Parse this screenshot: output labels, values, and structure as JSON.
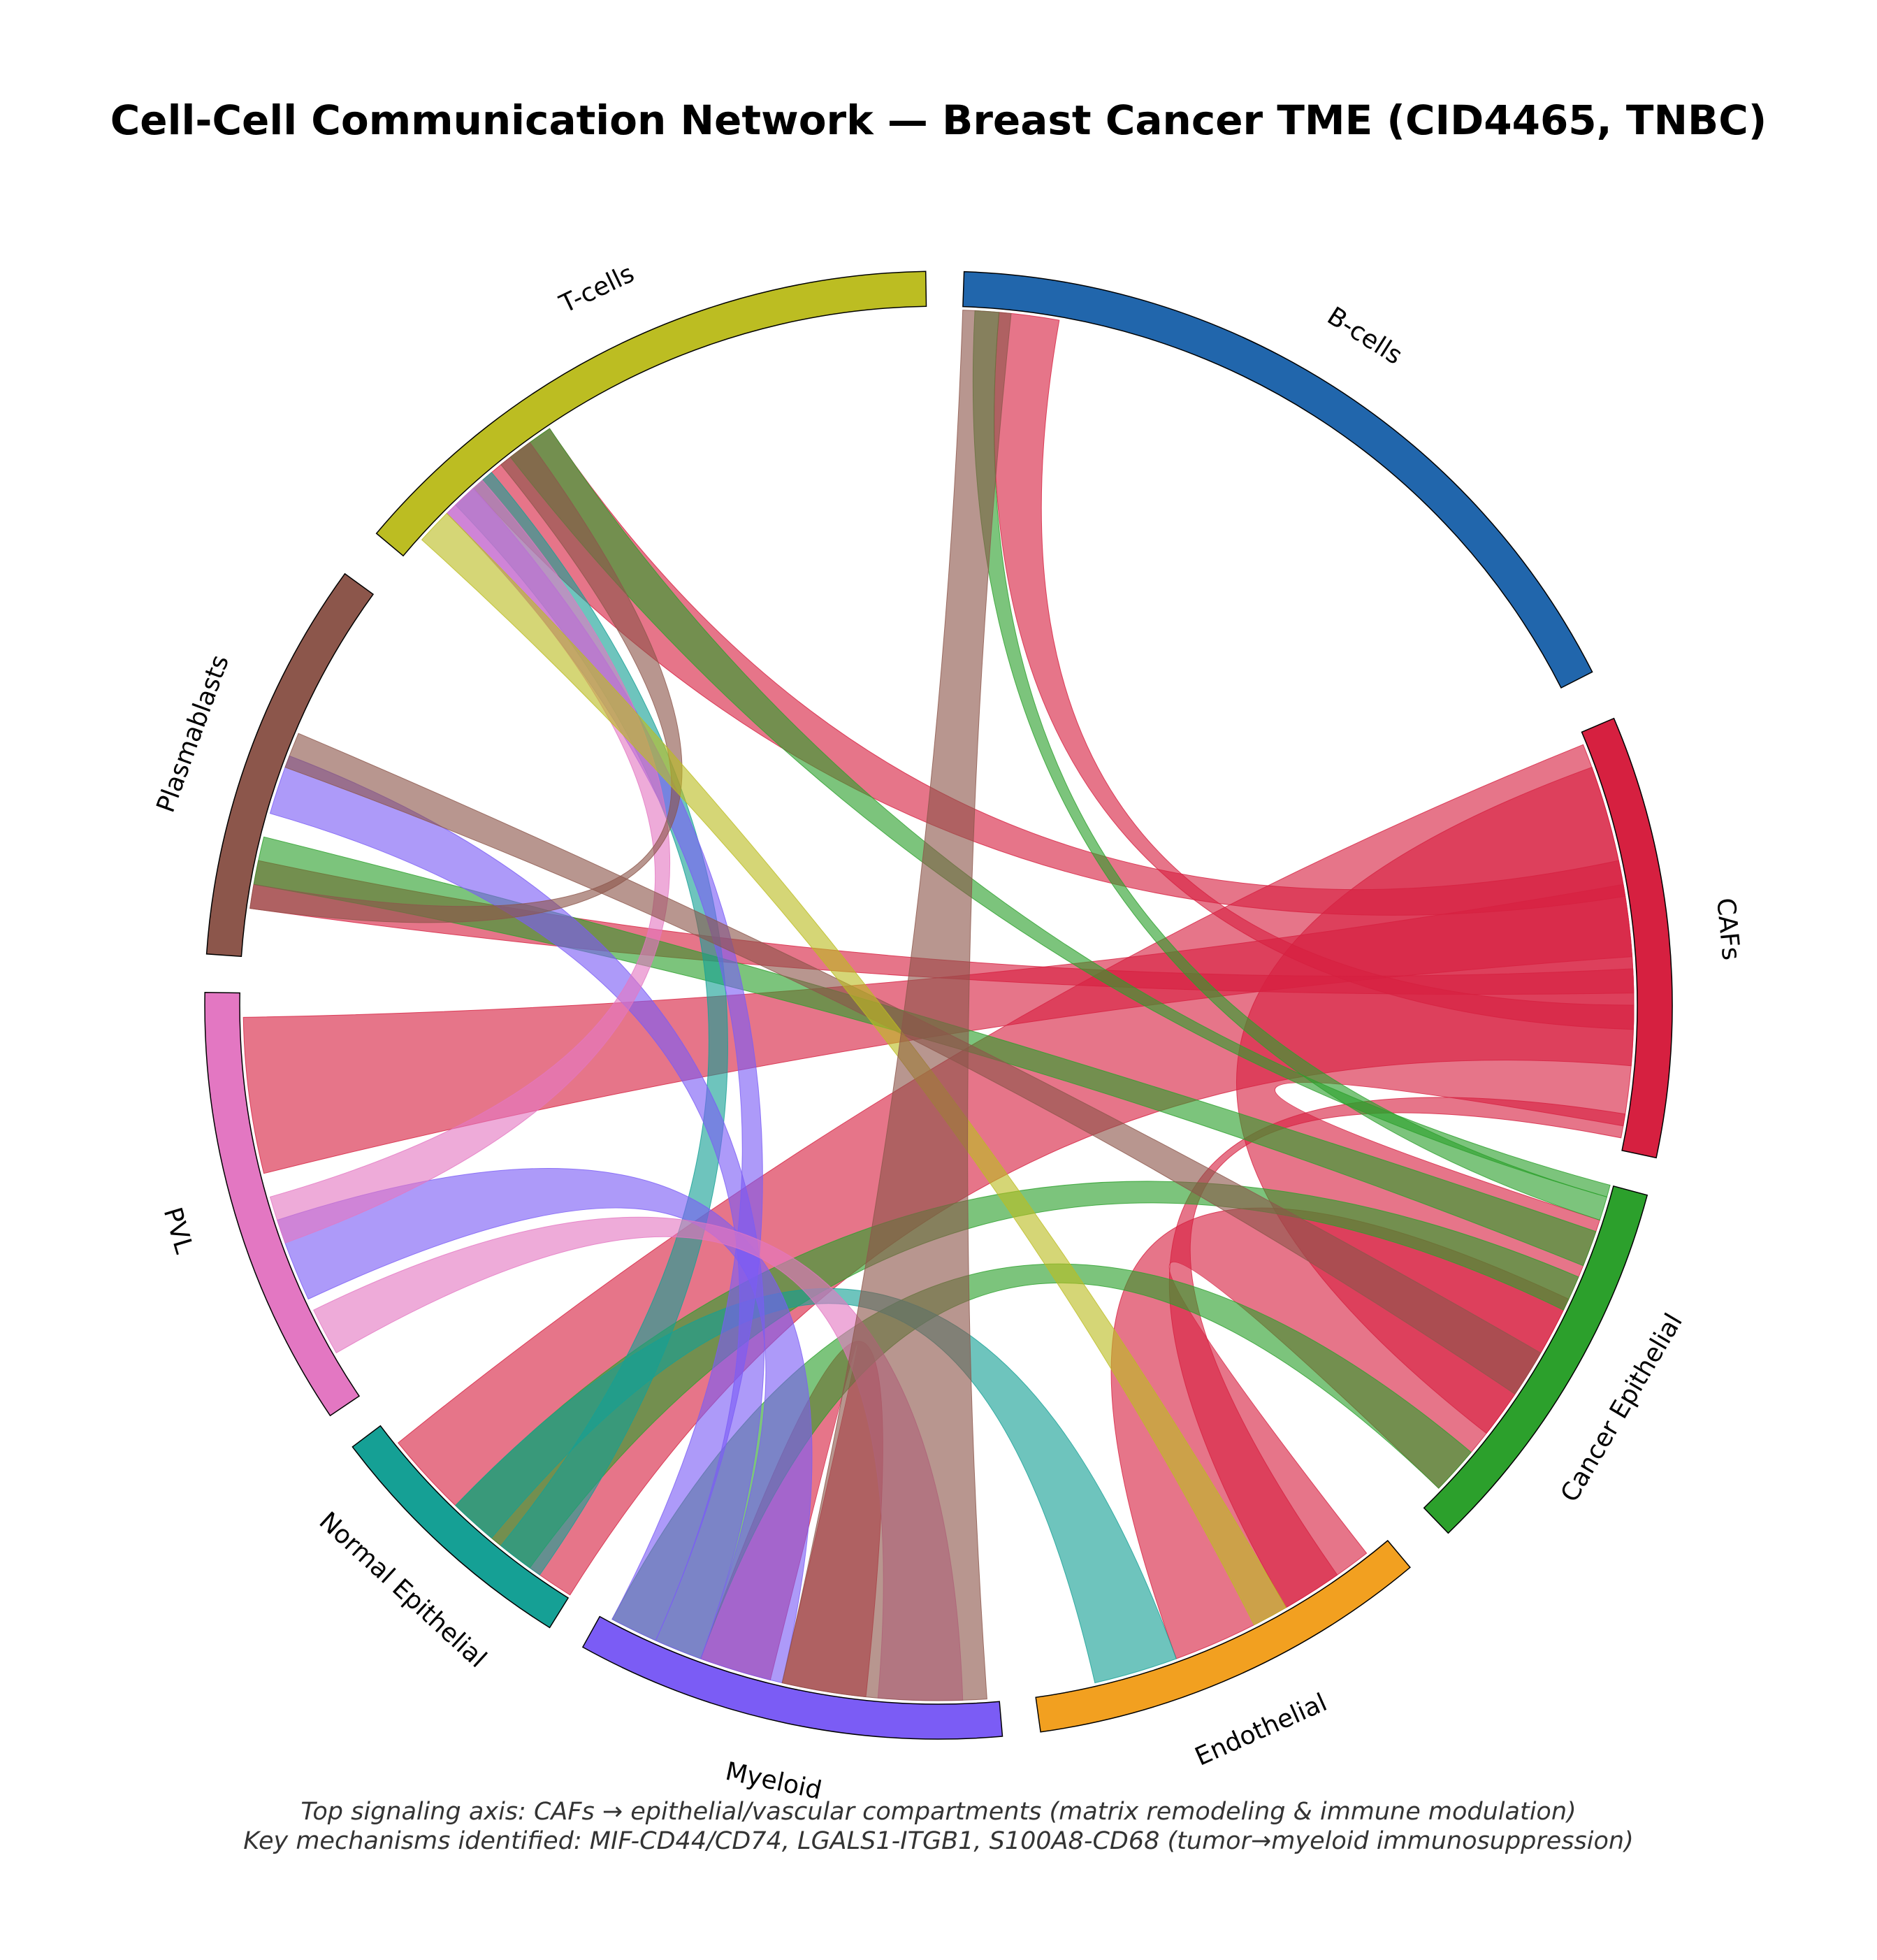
{
  "title": "Cell-Cell Communication Network — Breast Cancer TME (CID4465, TNBC)",
  "caption": {
    "line1": "Top signaling axis: CAFs → epithelial/vascular compartments (matrix remodeling & immune modulation)",
    "line2": "Key mechanisms identified: MIF-CD44/CD74, LGALS1-ITGB1, S100A8-CD68 (tumor→myeloid immunosuppression)"
  },
  "chart_data": {
    "type": "chord",
    "segments": [
      {
        "id": "bcells",
        "label": "B-cells",
        "color": "#2166ac",
        "start": -88,
        "end": -27
      },
      {
        "id": "cafs",
        "label": "CAFs",
        "color": "#d62040",
        "start": -23,
        "end": 12
      },
      {
        "id": "cancer_epi",
        "label": "Cancer Epithelial",
        "color": "#2ca02c",
        "start": 15,
        "end": 46
      },
      {
        "id": "endothelial",
        "label": "Endothelial",
        "color": "#f2a020",
        "start": 50,
        "end": 82
      },
      {
        "id": "myeloid",
        "label": "Myeloid",
        "color": "#7b5cf5",
        "start": 85,
        "end": 119
      },
      {
        "id": "normal_epi",
        "label": "Normal Epithelial",
        "color": "#15a095",
        "start": 122,
        "end": 143
      },
      {
        "id": "pvl",
        "label": "PVL",
        "color": "#e377c2",
        "start": 146,
        "end": 181
      },
      {
        "id": "plasmablasts",
        "label": "Plasmablasts",
        "color": "#8c564b",
        "start": 184,
        "end": 216
      },
      {
        "id": "tcells",
        "label": "T-cells",
        "color": "#bcbd22",
        "start": 220,
        "end": 269
      }
    ],
    "links": [
      {
        "source": "cafs",
        "s": [
          -22,
          5
        ],
        "t": [
          122,
          141
        ],
        "color": "#d62040"
      },
      {
        "source": "cafs",
        "s": [
          -20,
          10
        ],
        "t": [
          18,
          38
        ],
        "color": "#d62040"
      },
      {
        "source": "cafs",
        "s": [
          9,
          11
        ],
        "t": [
          55,
          60
        ],
        "color": "#d62040"
      },
      {
        "source": "cafs",
        "s": [
          -10,
          -4
        ],
        "t": [
          166,
          179
        ],
        "color": "#d62040"
      },
      {
        "source": "cafs",
        "s": [
          -3,
          -1
        ],
        "t": [
          188,
          192
        ],
        "color": "#d62040"
      },
      {
        "source": "cafs",
        "s": [
          -12,
          -9
        ],
        "t": [
          228,
          236
        ],
        "color": "#d62040"
      },
      {
        "source": "cafs",
        "s": [
          0,
          2
        ],
        "t": [
          -85,
          -80
        ],
        "color": "#d62040"
      },
      {
        "source": "cancer_epi",
        "s": [
          25,
          44
        ],
        "t": [
          52,
          70
        ],
        "color": "#d62040"
      },
      {
        "source": "myeloid",
        "s": [
          104,
          110
        ],
        "t": [
          96,
          103
        ],
        "color": "#d62040"
      },
      {
        "source": "cancer_epi",
        "s": [
          19,
          22
        ],
        "t": [
          190,
          194
        ],
        "color": "#2ca02c"
      },
      {
        "source": "cancer_epi",
        "s": [
          16,
          18
        ],
        "t": [
          -87,
          -85
        ],
        "color": "#2ca02c"
      },
      {
        "source": "cancer_epi",
        "s": [
          15,
          16
        ],
        "t": [
          232,
          236
        ],
        "color": "#2ca02c"
      },
      {
        "source": "cancer_epi",
        "s": [
          23,
          26
        ],
        "t": [
          126,
          134
        ],
        "color": "#2ca02c"
      },
      {
        "source": "cancer_epi",
        "s": [
          40,
          44
        ],
        "t": [
          110,
          118
        ],
        "color": "#2ca02c"
      },
      {
        "source": "normal_epi",
        "s": [
          125,
          129
        ],
        "t": [
          226,
          230
        ],
        "color": "#15a095"
      },
      {
        "source": "normal_epi",
        "s": [
          130,
          134
        ],
        "t": [
          70,
          77
        ],
        "color": "#15a095"
      },
      {
        "source": "myeloid",
        "s": [
          110,
          114
        ],
        "t": [
          196,
          201
        ],
        "color": "#7b5cf5"
      },
      {
        "source": "myeloid",
        "s": [
          114,
          118
        ],
        "t": [
          225,
          228
        ],
        "color": "#7b5cf5"
      },
      {
        "source": "myeloid",
        "s": [
          103,
          110
        ],
        "t": [
          155,
          162
        ],
        "color": "#7b5cf5"
      },
      {
        "source": "pvl",
        "s": [
          150,
          154
        ],
        "t": [
          88,
          95
        ],
        "color": "#e377c2"
      },
      {
        "source": "pvl",
        "s": [
          160,
          164
        ],
        "t": [
          225,
          229
        ],
        "color": "#e377c2"
      },
      {
        "source": "plasmablasts",
        "s": [
          188,
          190
        ],
        "t": [
          231,
          234
        ],
        "color": "#8c564b"
      },
      {
        "source": "plasmablasts",
        "s": [
          200,
          203
        ],
        "t": [
          30,
          34
        ],
        "color": "#8c564b"
      },
      {
        "source": "tcells",
        "s": [
          222,
          225
        ],
        "t": [
          60,
          63
        ],
        "color": "#bcbd22"
      },
      {
        "source": "bcells",
        "s": [
          -88,
          -84
        ],
        "t": [
          86,
          103
        ],
        "color": "#8c564b"
      }
    ]
  }
}
